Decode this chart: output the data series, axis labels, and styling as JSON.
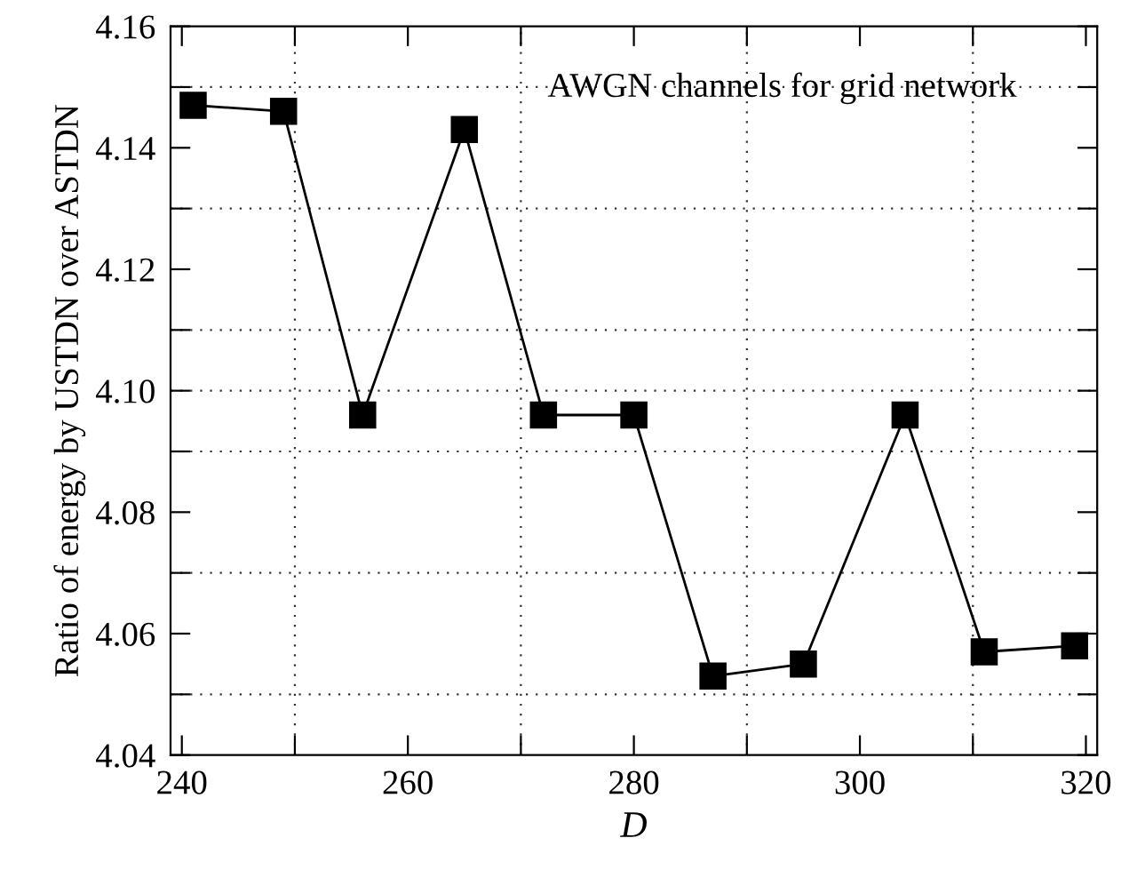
{
  "chart_data": {
    "type": "line",
    "xlabel": "D",
    "ylabel": "Ratio of energy by USTDN over ASTDN",
    "annotations": [
      "AWGN channels for grid network"
    ],
    "x": [
      241,
      249,
      256,
      265,
      272,
      280,
      287,
      295,
      304,
      311,
      319
    ],
    "series": [
      {
        "color": "#000000",
        "values": [
          4.147,
          4.146,
          4.096,
          4.143,
          4.096,
          4.096,
          4.053,
          4.055,
          4.096,
          4.057,
          4.058
        ]
      }
    ],
    "marker": "square",
    "line_style": "solid",
    "xlim": [
      239,
      321
    ],
    "ylim": [
      4.04,
      4.16
    ],
    "xticks": [
      240,
      {
        "value": 250,
        "label": null
      },
      260,
      {
        "value": 270,
        "label": null
      },
      280,
      {
        "value": 290,
        "label": null
      },
      300,
      {
        "value": 310,
        "label": null
      },
      320
    ],
    "yticks": [
      4.04,
      {
        "value": 4.05,
        "label": null
      },
      4.06,
      {
        "value": 4.07,
        "label": null
      },
      4.08,
      {
        "value": 4.09,
        "label": null
      },
      {
        "value": 4.1,
        "label": "4.10"
      },
      {
        "value": 4.11,
        "label": null
      },
      4.12,
      {
        "value": 4.13,
        "label": null
      },
      4.14,
      {
        "value": 4.15,
        "label": null
      },
      4.16
    ],
    "grid": true
  }
}
